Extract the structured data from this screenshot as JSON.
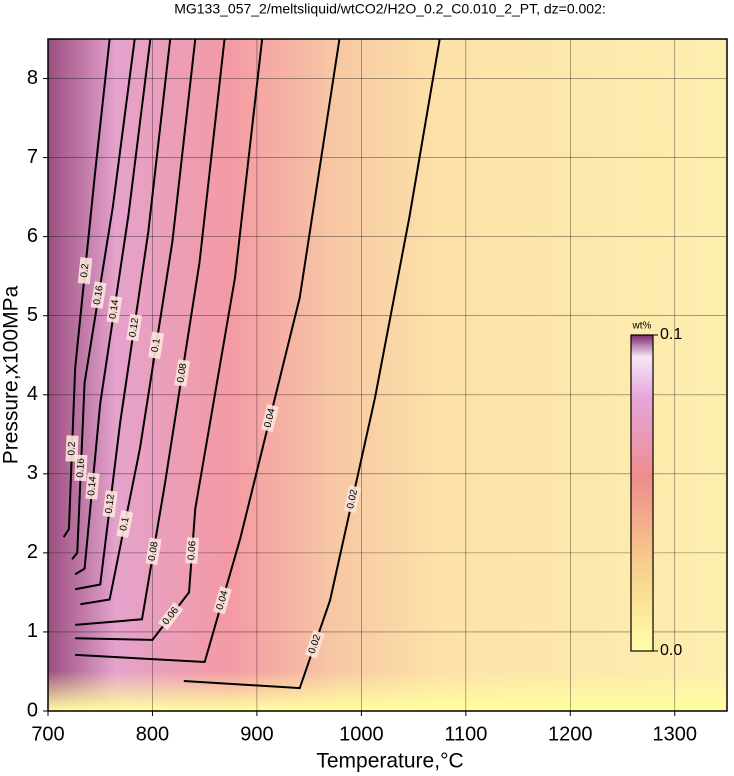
{
  "chart_data": {
    "type": "contour",
    "title": "MG133_057_2/meltsliquid/wtCO2/H2O_0.2_C0.010_2_PT, dz=0.002:",
    "x_label": "Temperature,°C",
    "y_label": "Pressure,x100MPa",
    "xlim": [
      700,
      1350
    ],
    "ylim": [
      0,
      8.5
    ],
    "xticks": [
      700,
      800,
      900,
      1000,
      1100,
      1200,
      1300
    ],
    "yticks": [
      0,
      1,
      2,
      3,
      4,
      5,
      6,
      7,
      8
    ],
    "grid": true,
    "line_color": "#000000",
    "contours": [
      {
        "level": 0.02,
        "t": [
          830,
          941,
          970,
          1013,
          1046,
          1075
        ],
        "p": [
          0.38,
          0.29,
          1.4,
          3.96,
          6.25,
          8.5
        ]
      },
      {
        "level": 0.04,
        "t": [
          726,
          850,
          884,
          941,
          979
        ],
        "p": [
          0.71,
          0.62,
          2.18,
          5.23,
          8.5
        ]
      },
      {
        "level": 0.06,
        "t": [
          726,
          800,
          835,
          841,
          879,
          905
        ],
        "p": [
          0.92,
          0.9,
          1.5,
          2.56,
          5.48,
          8.5
        ]
      },
      {
        "level": 0.08,
        "t": [
          726,
          790,
          812,
          845,
          869
        ],
        "p": [
          1.09,
          1.16,
          2.88,
          5.67,
          8.5
        ]
      },
      {
        "level": 0.1,
        "t": [
          731,
          759,
          788,
          819,
          841
        ],
        "p": [
          1.35,
          1.41,
          3.32,
          5.93,
          8.5
        ]
      },
      {
        "level": 0.12,
        "t": [
          726,
          750,
          769,
          796,
          817
        ],
        "p": [
          1.54,
          1.6,
          3.64,
          6.06,
          8.5
        ]
      },
      {
        "level": 0.14,
        "t": [
          726,
          735,
          750,
          777,
          798
        ],
        "p": [
          1.73,
          1.8,
          3.89,
          6.27,
          8.5
        ]
      },
      {
        "level": 0.16,
        "t": [
          723,
          728,
          735,
          762,
          783
        ],
        "p": [
          1.92,
          2.0,
          4.15,
          6.37,
          8.5
        ]
      },
      {
        "level": 0.2,
        "t": [
          715,
          720,
          726,
          745,
          759
        ],
        "p": [
          2.2,
          2.3,
          4.34,
          6.8,
          8.5
        ]
      }
    ],
    "colorbar": {
      "label": "wt%",
      "lim": [
        0,
        0.1
      ],
      "ticks": [
        {
          "value": 0,
          "label": "0.0"
        },
        0.1
      ]
    }
  }
}
